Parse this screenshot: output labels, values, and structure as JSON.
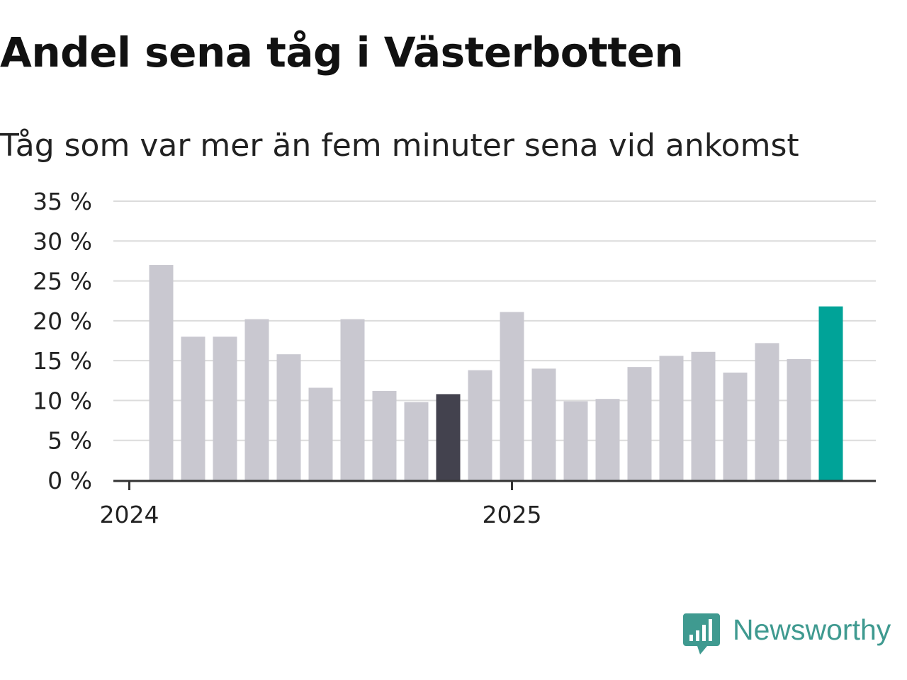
{
  "title": "Andel sena tåg i Västerbotten",
  "subtitle": "Tåg som var mer än fem minuter sena vid ankomst",
  "brand": {
    "name": "Newsworthy",
    "icon": "bar-chart-pin-icon",
    "color": "#3f9a90"
  },
  "chart_data": {
    "type": "bar",
    "title": "Andel sena tåg i Västerbotten",
    "subtitle": "Tåg som var mer än fem minuter sena vid ankomst",
    "xlabel": "",
    "ylabel": "",
    "ylim": [
      0,
      35
    ],
    "yticks": [
      0,
      5,
      10,
      15,
      20,
      25,
      30,
      35
    ],
    "ytick_labels": [
      "0 %",
      "5 %",
      "10 %",
      "15 %",
      "20 %",
      "25 %",
      "30 %",
      "35 %"
    ],
    "tick_format_suffix": " %",
    "grid": true,
    "x_labels": [
      {
        "label": "2024",
        "month": "2024-01"
      },
      {
        "label": "2025",
        "month": "2025-01"
      }
    ],
    "categories": [
      "2024-01",
      "2024-02",
      "2024-03",
      "2024-04",
      "2024-05",
      "2024-06",
      "2024-07",
      "2024-08",
      "2024-09",
      "2024-10",
      "2024-11",
      "2024-12",
      "2025-01",
      "2025-02",
      "2025-03",
      "2025-04",
      "2025-05",
      "2025-06",
      "2025-07",
      "2025-08",
      "2025-09",
      "2025-10",
      "2025-11"
    ],
    "values": [
      null,
      27.0,
      18.0,
      18.0,
      20.2,
      15.8,
      11.6,
      20.2,
      11.2,
      9.8,
      10.8,
      13.8,
      21.1,
      14.0,
      9.9,
      10.2,
      14.2,
      15.6,
      16.1,
      13.5,
      17.2,
      15.2,
      21.8
    ],
    "colors": {
      "default": "#c9c8d0",
      "highlight_dark": "#43424e",
      "highlight_latest": "#00a398",
      "grid": "#dcdcdc",
      "axis": "#333333"
    },
    "highlights": {
      "2024-11": "highlight_dark",
      "2025-11": "highlight_latest"
    }
  }
}
